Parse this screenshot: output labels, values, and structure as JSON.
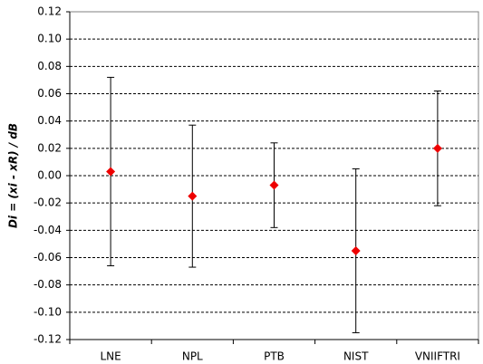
{
  "chart_data": {
    "type": "errorbar",
    "y_label": "Di = (xi - xR) / dB",
    "categories": [
      "LNE",
      "NPL",
      "PTB",
      "NIST",
      "VNIIFTRI"
    ],
    "values": [
      0.003,
      -0.015,
      -0.007,
      -0.055,
      0.02
    ],
    "errors": [
      0.069,
      0.052,
      0.031,
      0.06,
      0.042
    ],
    "color": "#ee0000",
    "ylim": [
      -0.12,
      0.12
    ],
    "yticks": [
      {
        "value": -0.12,
        "label": "-0.12"
      },
      {
        "value": -0.1,
        "label": "-0.10"
      },
      -0.08,
      -0.06,
      -0.04,
      -0.02,
      {
        "value": 0,
        "label": "0.00"
      },
      0.02,
      0.04,
      0.06,
      0.08,
      {
        "value": 0.1,
        "label": "0.10"
      },
      0.12
    ],
    "grid": true
  }
}
